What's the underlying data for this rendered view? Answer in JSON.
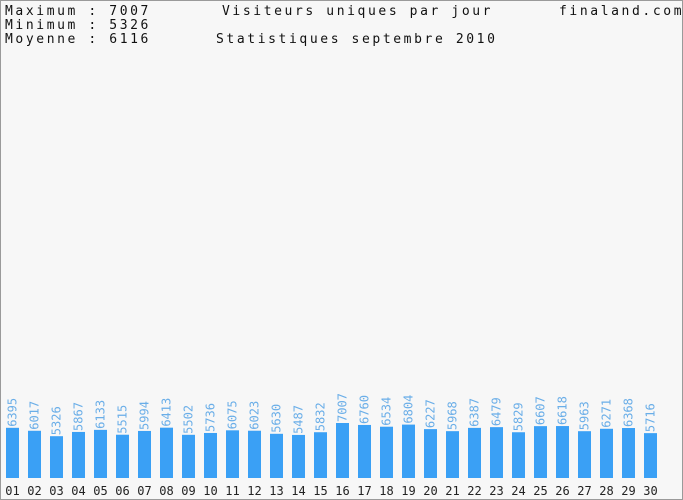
{
  "header": {
    "max_label": "Maximum : 7007",
    "min_label": "Minimum : 5326",
    "avg_label": "Moyenne : 6116",
    "site": "finaland.com"
  },
  "chart_data": {
    "type": "bar",
    "title": "Visiteurs uniques par jour",
    "subtitle": "Statistiques septembre 2010",
    "categories": [
      "01",
      "02",
      "03",
      "04",
      "05",
      "06",
      "07",
      "08",
      "09",
      "10",
      "11",
      "12",
      "13",
      "14",
      "15",
      "16",
      "17",
      "18",
      "19",
      "20",
      "21",
      "22",
      "23",
      "24",
      "25",
      "26",
      "27",
      "28",
      "29",
      "30"
    ],
    "values": [
      6395,
      6017,
      5326,
      5867,
      6133,
      5515,
      5994,
      6413,
      5502,
      5736,
      6075,
      6023,
      5630,
      5487,
      5832,
      7007,
      6760,
      6534,
      6804,
      6227,
      5968,
      6387,
      6479,
      5829,
      6607,
      6618,
      5963,
      6271,
      6368,
      5716
    ],
    "bar_color": "#3aa0f5",
    "label_color": "#6aaee8",
    "ylim": [
      0,
      7007
    ],
    "grid": false
  }
}
